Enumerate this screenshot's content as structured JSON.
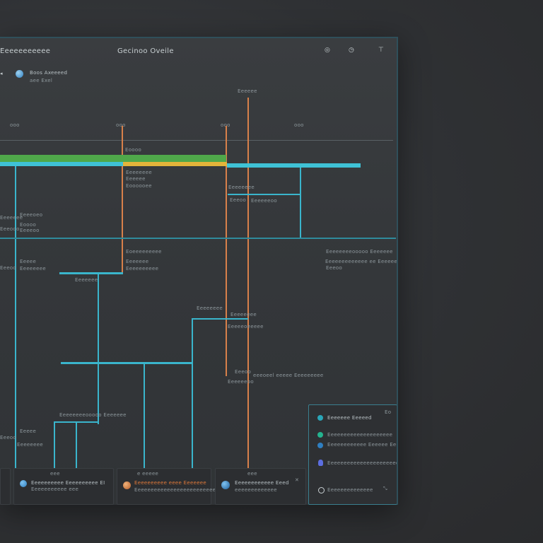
{
  "window": {
    "app_name": "Eeeeeeeeeee",
    "title": "Gecinoo Oveile",
    "controls": [
      "circle-icon",
      "info-icon",
      "pin-icon"
    ]
  },
  "user": {
    "name": "Boos Axeeeed",
    "sub": "aee Exel"
  },
  "axis_labels": [
    "ooo",
    "ooo",
    "ooo",
    "ooo"
  ],
  "marker_label": "Eeeeee",
  "labels": {
    "l1": "Eoooo",
    "l2": "Eeeeeeee",
    "l3": "Eeeeee",
    "l4": "Eoooooee",
    "l5": "Eeeeeeee",
    "l6": "Eeeoo",
    "l7": "Eeeeeeoo",
    "l8": "Eeeeeee",
    "l9": "Eeeeoeo",
    "l10": "Eoooo",
    "l11": "Eeeooo",
    "l12": "Eeeeoo",
    "l13": "Eoeeeeeeeee",
    "l14": "Eeeeeee",
    "l15": "Eeeeeeeeee",
    "l16": "Eeeee",
    "l17": "Eeeoo",
    "l18": "Eeeeeeee",
    "l19": "Eeeeeee",
    "l20": "Eeeeeeee",
    "l21": "eeeoeel eeeee Eeeeeeeee",
    "l22": "Eeeeeeee",
    "l23": "Eeeeeoeeeee",
    "l24": "Eeeoo",
    "l25": "Eeeeeeoo",
    "l26": "Eeeeeeeeooooo Eeeeeee",
    "l27": "Eeeeeeeeeeeee ee Eeeeee",
    "l28": "Eeeeeeee"
  },
  "cards": [
    {
      "tag": "eee",
      "title": "Eeeeeeeeee Eeeeeeeeee EI",
      "sub": "Eeeeeeeeeee eee",
      "icon": "globe-icon",
      "color": "#2f7fc1"
    },
    {
      "tag": "e eeeee",
      "title": "Eeeeeeeeee eeee Eeeeeee",
      "sub": "Eeeeeeeeeeeeeeeeeeeeeeeeeee",
      "icon": "avatar-icon",
      "color": "#c8793a",
      "accent": "#e07a3a"
    },
    {
      "tag": "eee",
      "title": "Eeeeeeeeeeee Eeed",
      "sub": "eeeeeeeeeeeee",
      "icon": "globe-icon",
      "color": "#2f7fc1"
    }
  ],
  "legend": {
    "items": [
      {
        "label": "Eeeeeee Eeeeed",
        "color": "#2aa6b8",
        "icon": "globe-icon"
      },
      {
        "label": "Eeeeeeeeeeeeeeeeeeee",
        "color": "#24b38f",
        "icon": "leaf-icon"
      },
      {
        "label": "Eeeeeeeeeeee Eeeeee Eeeee",
        "color": "#2f7fc1",
        "icon": "shield-icon"
      },
      {
        "label": "Eeeeeeeeeeeeeeeeeeeeeeeeee",
        "color": "#5c6ee0",
        "icon": "bulb-icon"
      },
      {
        "label": "Eeeeeeeeeeeeee",
        "color": "#c9d0d3",
        "icon": "shield-icon"
      }
    ],
    "corner": "Eo"
  }
}
